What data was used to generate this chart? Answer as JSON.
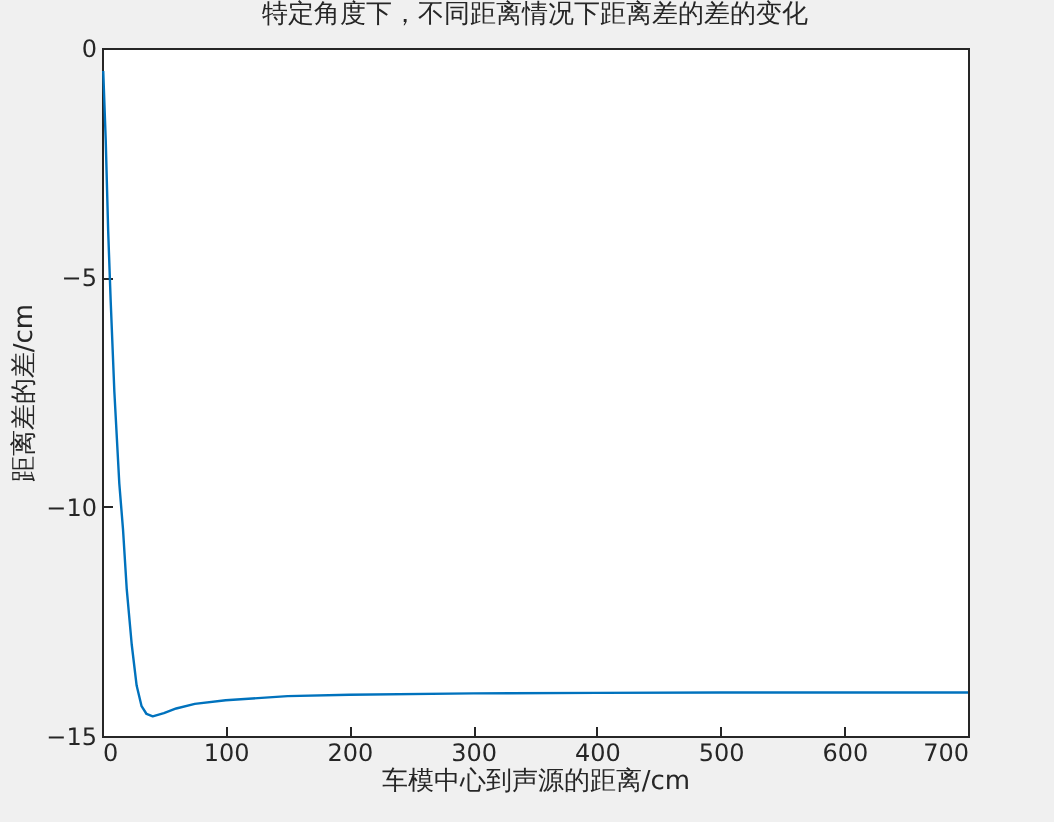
{
  "chart_data": {
    "type": "line",
    "title": "特定角度下，不同距离情况下距离差的差的变化",
    "xlabel": "车模中心到声源的距离/cm",
    "ylabel": "距离差的差/cm",
    "x": [
      1,
      3,
      5,
      7,
      10,
      14,
      17,
      20,
      24,
      28,
      32,
      36,
      41,
      50,
      60,
      75,
      100,
      150,
      200,
      300,
      400,
      500,
      700
    ],
    "series": [
      {
        "color": "#0072bd",
        "values": [
          -0.5,
          -2,
          -4,
          -5.5,
          -7.5,
          -9.5,
          -10.5,
          -11.8,
          -13,
          -13.9,
          -14.35,
          -14.52,
          -14.57,
          -14.5,
          -14.4,
          -14.3,
          -14.22,
          -14.13,
          -14.1,
          -14.07,
          -14.06,
          -14.05,
          -14.05
        ]
      }
    ],
    "xlim": [
      0,
      700
    ],
    "xticks": [
      0,
      100,
      200,
      300,
      400,
      500,
      600,
      700
    ],
    "ylim": [
      -15,
      0
    ],
    "yticks": [
      -15,
      -10,
      -5,
      0
    ],
    "grid": false,
    "marker": "none",
    "line_style": "solid"
  }
}
